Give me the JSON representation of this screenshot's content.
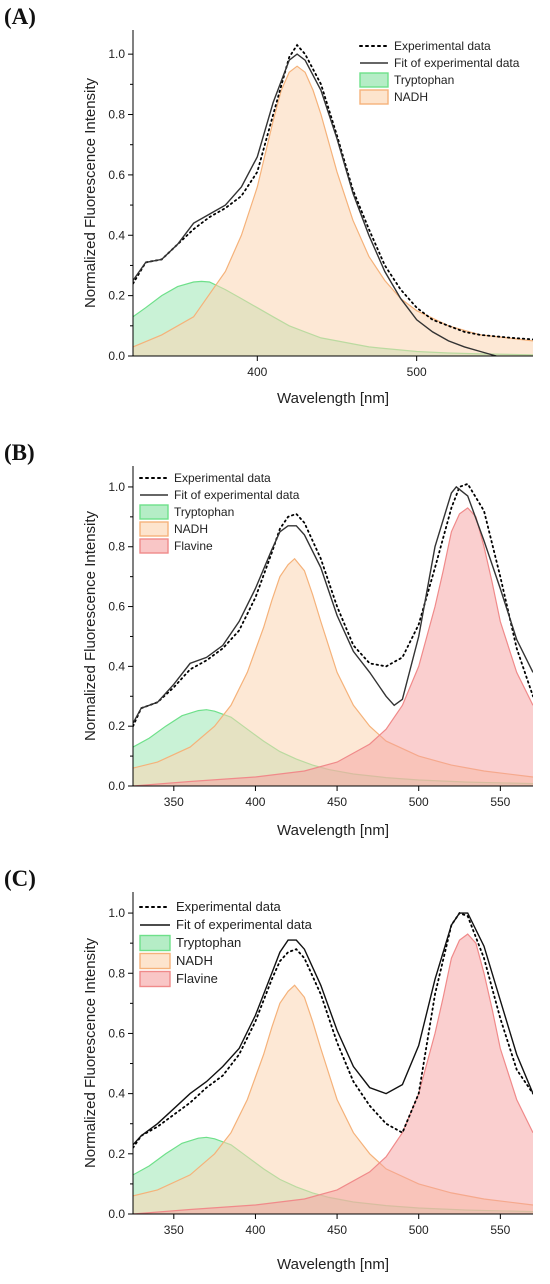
{
  "panels": [
    {
      "letter": "(A)",
      "chart_data": {
        "type": "line",
        "xlabel": "Wavelength [nm]",
        "ylabel": "Normalized Fluorescence Intensity",
        "xlim": [
          322,
          573
        ],
        "ylim": [
          0,
          1.08
        ],
        "xticks": [
          400,
          500
        ],
        "yticks": [
          0.0,
          0.2,
          0.4,
          0.6,
          0.8,
          1.0
        ],
        "legend_position": "top-right",
        "grid": false,
        "series": [
          {
            "name": "Experimental data",
            "kind": "dotted",
            "color": "#000000",
            "x": [
              322,
              330,
              340,
              350,
              360,
              370,
              380,
              390,
              400,
              410,
              420,
              425,
              430,
              440,
              450,
              460,
              470,
              480,
              490,
              500,
              510,
              520,
              530,
              540,
              550,
              560,
              573
            ],
            "y": [
              0.24,
              0.31,
              0.32,
              0.37,
              0.42,
              0.46,
              0.49,
              0.53,
              0.61,
              0.8,
              0.99,
              1.03,
              1.0,
              0.9,
              0.73,
              0.55,
              0.42,
              0.3,
              0.22,
              0.16,
              0.12,
              0.1,
              0.08,
              0.07,
              0.065,
              0.06,
              0.055
            ]
          },
          {
            "name": "Fit of experimental data",
            "kind": "solid",
            "color": "#333333",
            "x": [
              322,
              330,
              340,
              350,
              360,
              370,
              380,
              390,
              400,
              410,
              420,
              425,
              430,
              440,
              450,
              460,
              470,
              480,
              490,
              500,
              510,
              520,
              530,
              540,
              550
            ],
            "y": [
              0.25,
              0.31,
              0.32,
              0.37,
              0.44,
              0.47,
              0.5,
              0.56,
              0.66,
              0.84,
              0.98,
              1.0,
              0.98,
              0.88,
              0.72,
              0.54,
              0.4,
              0.28,
              0.19,
              0.12,
              0.08,
              0.05,
              0.03,
              0.015,
              0.0
            ]
          },
          {
            "name": "Tryptophan",
            "kind": "area",
            "stroke": "#6ee08a",
            "fill": "#3dd06a",
            "fill_opacity": 0.28,
            "x": [
              322,
              330,
              340,
              350,
              360,
              365,
              370,
              380,
              390,
              400,
              410,
              420,
              430,
              440,
              450,
              460,
              470,
              480,
              500,
              520,
              540,
              573
            ],
            "y": [
              0.13,
              0.16,
              0.2,
              0.23,
              0.245,
              0.247,
              0.245,
              0.22,
              0.19,
              0.16,
              0.13,
              0.1,
              0.08,
              0.06,
              0.05,
              0.04,
              0.03,
              0.025,
              0.015,
              0.01,
              0.007,
              0.004
            ]
          },
          {
            "name": "NADH",
            "kind": "area",
            "stroke": "#f5b27a",
            "fill": "#fcd6b2",
            "fill_opacity": 0.55,
            "x": [
              322,
              340,
              360,
              380,
              390,
              400,
              410,
              415,
              420,
              425,
              430,
              435,
              440,
              450,
              460,
              470,
              480,
              490,
              500,
              520,
              540,
              573
            ],
            "y": [
              0.03,
              0.07,
              0.13,
              0.28,
              0.4,
              0.56,
              0.78,
              0.88,
              0.94,
              0.96,
              0.94,
              0.88,
              0.8,
              0.61,
              0.45,
              0.33,
              0.25,
              0.19,
              0.15,
              0.1,
              0.07,
              0.05
            ]
          }
        ]
      }
    },
    {
      "letter": "(B)",
      "chart_data": {
        "type": "line",
        "xlabel": "Wavelength [nm]",
        "ylabel": "Normalized Fluorescence Intensity",
        "xlim": [
          325,
          570
        ],
        "ylim": [
          0,
          1.07
        ],
        "xticks": [
          350,
          400,
          450,
          500,
          550
        ],
        "yticks": [
          0.0,
          0.2,
          0.4,
          0.6,
          0.8,
          1.0
        ],
        "legend_position": "top-left",
        "grid": false,
        "series": [
          {
            "name": "Experimental data",
            "kind": "dotted",
            "color": "#000000",
            "x": [
              325,
              330,
              340,
              350,
              360,
              370,
              380,
              390,
              400,
              410,
              415,
              420,
              425,
              430,
              440,
              450,
              460,
              470,
              480,
              490,
              500,
              510,
              520,
              525,
              530,
              540,
              550,
              560,
              570
            ],
            "y": [
              0.2,
              0.26,
              0.28,
              0.33,
              0.39,
              0.42,
              0.46,
              0.52,
              0.63,
              0.78,
              0.86,
              0.9,
              0.91,
              0.88,
              0.76,
              0.6,
              0.47,
              0.41,
              0.4,
              0.43,
              0.54,
              0.73,
              0.93,
              1.0,
              1.01,
              0.92,
              0.7,
              0.46,
              0.3
            ]
          },
          {
            "name": "Fit of experimental data",
            "kind": "solid",
            "color": "#333333",
            "x": [
              325,
              330,
              340,
              350,
              360,
              370,
              380,
              390,
              400,
              410,
              415,
              420,
              425,
              430,
              440,
              450,
              460,
              470,
              480,
              485,
              490,
              500,
              510,
              520,
              523,
              530,
              540,
              550,
              560,
              570
            ],
            "y": [
              0.21,
              0.26,
              0.28,
              0.34,
              0.41,
              0.43,
              0.47,
              0.55,
              0.66,
              0.79,
              0.85,
              0.87,
              0.87,
              0.84,
              0.73,
              0.57,
              0.45,
              0.38,
              0.3,
              0.27,
              0.29,
              0.5,
              0.8,
              0.98,
              1.0,
              0.97,
              0.82,
              0.66,
              0.49,
              0.38
            ]
          },
          {
            "name": "Tryptophan",
            "kind": "area",
            "stroke": "#6ee08a",
            "fill": "#3dd06a",
            "fill_opacity": 0.28,
            "x": [
              325,
              335,
              345,
              355,
              365,
              370,
              375,
              385,
              395,
              405,
              415,
              425,
              435,
              445,
              460,
              480,
              500,
              530,
              570
            ],
            "y": [
              0.13,
              0.16,
              0.2,
              0.235,
              0.252,
              0.255,
              0.25,
              0.23,
              0.19,
              0.15,
              0.115,
              0.09,
              0.07,
              0.055,
              0.04,
              0.028,
              0.02,
              0.013,
              0.008
            ]
          },
          {
            "name": "NADH",
            "kind": "area",
            "stroke": "#f5b27a",
            "fill": "#fcd6b2",
            "fill_opacity": 0.55,
            "x": [
              325,
              340,
              360,
              375,
              385,
              395,
              405,
              410,
              415,
              420,
              424,
              430,
              435,
              440,
              450,
              460,
              470,
              480,
              500,
              520,
              540,
              570
            ],
            "y": [
              0.06,
              0.08,
              0.13,
              0.2,
              0.27,
              0.38,
              0.53,
              0.62,
              0.7,
              0.74,
              0.76,
              0.72,
              0.64,
              0.55,
              0.38,
              0.27,
              0.2,
              0.15,
              0.1,
              0.07,
              0.05,
              0.03
            ]
          },
          {
            "name": "Flavine",
            "kind": "area",
            "stroke": "#f08a8a",
            "fill": "#f5a0a0",
            "fill_opacity": 0.5,
            "x": [
              325,
              360,
              400,
              430,
              450,
              470,
              480,
              490,
              500,
              510,
              515,
              520,
              525,
              530,
              535,
              540,
              545,
              550,
              560,
              570
            ],
            "y": [
              0.0,
              0.015,
              0.03,
              0.05,
              0.08,
              0.14,
              0.19,
              0.27,
              0.4,
              0.6,
              0.72,
              0.85,
              0.91,
              0.93,
              0.9,
              0.8,
              0.68,
              0.55,
              0.38,
              0.27
            ]
          }
        ]
      }
    },
    {
      "letter": "(C)",
      "chart_data": {
        "type": "line",
        "xlabel": "Wavelength [nm]",
        "ylabel": "Normalized Fluorescence Intensity",
        "xlim": [
          325,
          570
        ],
        "ylim": [
          0,
          1.07
        ],
        "xticks": [
          350,
          400,
          450,
          500,
          550
        ],
        "yticks": [
          0.0,
          0.2,
          0.4,
          0.6,
          0.8,
          1.0
        ],
        "legend_position": "top-left",
        "grid": false,
        "series": [
          {
            "name": "Experimental data",
            "kind": "dotted",
            "color": "#000000",
            "x": [
              325,
              330,
              340,
              350,
              360,
              370,
              380,
              390,
              400,
              410,
              415,
              420,
              425,
              430,
              440,
              450,
              460,
              470,
              480,
              490,
              500,
              510,
              520,
              525,
              530,
              540,
              550,
              560,
              570
            ],
            "y": [
              0.22,
              0.26,
              0.29,
              0.33,
              0.37,
              0.42,
              0.46,
              0.53,
              0.64,
              0.78,
              0.84,
              0.87,
              0.88,
              0.85,
              0.73,
              0.57,
              0.44,
              0.36,
              0.3,
              0.27,
              0.4,
              0.73,
              0.96,
              1.0,
              0.99,
              0.85,
              0.65,
              0.48,
              0.4
            ]
          },
          {
            "name": "Fit of experimental data",
            "kind": "solid",
            "color": "#111111",
            "x": [
              325,
              330,
              340,
              350,
              360,
              370,
              380,
              390,
              400,
              410,
              415,
              420,
              425,
              430,
              440,
              450,
              460,
              470,
              480,
              490,
              500,
              510,
              520,
              525,
              530,
              540,
              550,
              560,
              570
            ],
            "y": [
              0.23,
              0.26,
              0.3,
              0.35,
              0.4,
              0.44,
              0.49,
              0.55,
              0.66,
              0.8,
              0.87,
              0.91,
              0.91,
              0.88,
              0.76,
              0.61,
              0.49,
              0.42,
              0.4,
              0.43,
              0.56,
              0.78,
              0.96,
              1.0,
              1.0,
              0.89,
              0.71,
              0.53,
              0.4
            ]
          },
          {
            "name": "Tryptophan",
            "kind": "area",
            "stroke": "#6ee08a",
            "fill": "#3dd06a",
            "fill_opacity": 0.28,
            "x": [
              325,
              335,
              345,
              355,
              365,
              370,
              375,
              385,
              395,
              405,
              415,
              425,
              435,
              445,
              460,
              480,
              500,
              530,
              570
            ],
            "y": [
              0.13,
              0.16,
              0.2,
              0.235,
              0.252,
              0.255,
              0.25,
              0.23,
              0.19,
              0.15,
              0.115,
              0.09,
              0.07,
              0.055,
              0.04,
              0.028,
              0.02,
              0.013,
              0.008
            ]
          },
          {
            "name": "NADH",
            "kind": "area",
            "stroke": "#f5b27a",
            "fill": "#fcd6b2",
            "fill_opacity": 0.55,
            "x": [
              325,
              340,
              360,
              375,
              385,
              395,
              405,
              410,
              415,
              420,
              424,
              430,
              435,
              440,
              450,
              460,
              470,
              480,
              500,
              520,
              540,
              570
            ],
            "y": [
              0.06,
              0.08,
              0.13,
              0.2,
              0.27,
              0.38,
              0.53,
              0.62,
              0.7,
              0.74,
              0.76,
              0.72,
              0.64,
              0.55,
              0.38,
              0.27,
              0.2,
              0.15,
              0.1,
              0.07,
              0.05,
              0.03
            ]
          },
          {
            "name": "Flavine",
            "kind": "area",
            "stroke": "#f08a8a",
            "fill": "#f5a0a0",
            "fill_opacity": 0.5,
            "x": [
              325,
              360,
              400,
              430,
              450,
              470,
              480,
              490,
              500,
              510,
              515,
              520,
              525,
              530,
              535,
              540,
              545,
              550,
              560,
              570
            ],
            "y": [
              0.0,
              0.015,
              0.03,
              0.05,
              0.08,
              0.14,
              0.19,
              0.27,
              0.4,
              0.6,
              0.72,
              0.85,
              0.91,
              0.93,
              0.9,
              0.8,
              0.68,
              0.55,
              0.38,
              0.27
            ]
          }
        ]
      }
    }
  ]
}
